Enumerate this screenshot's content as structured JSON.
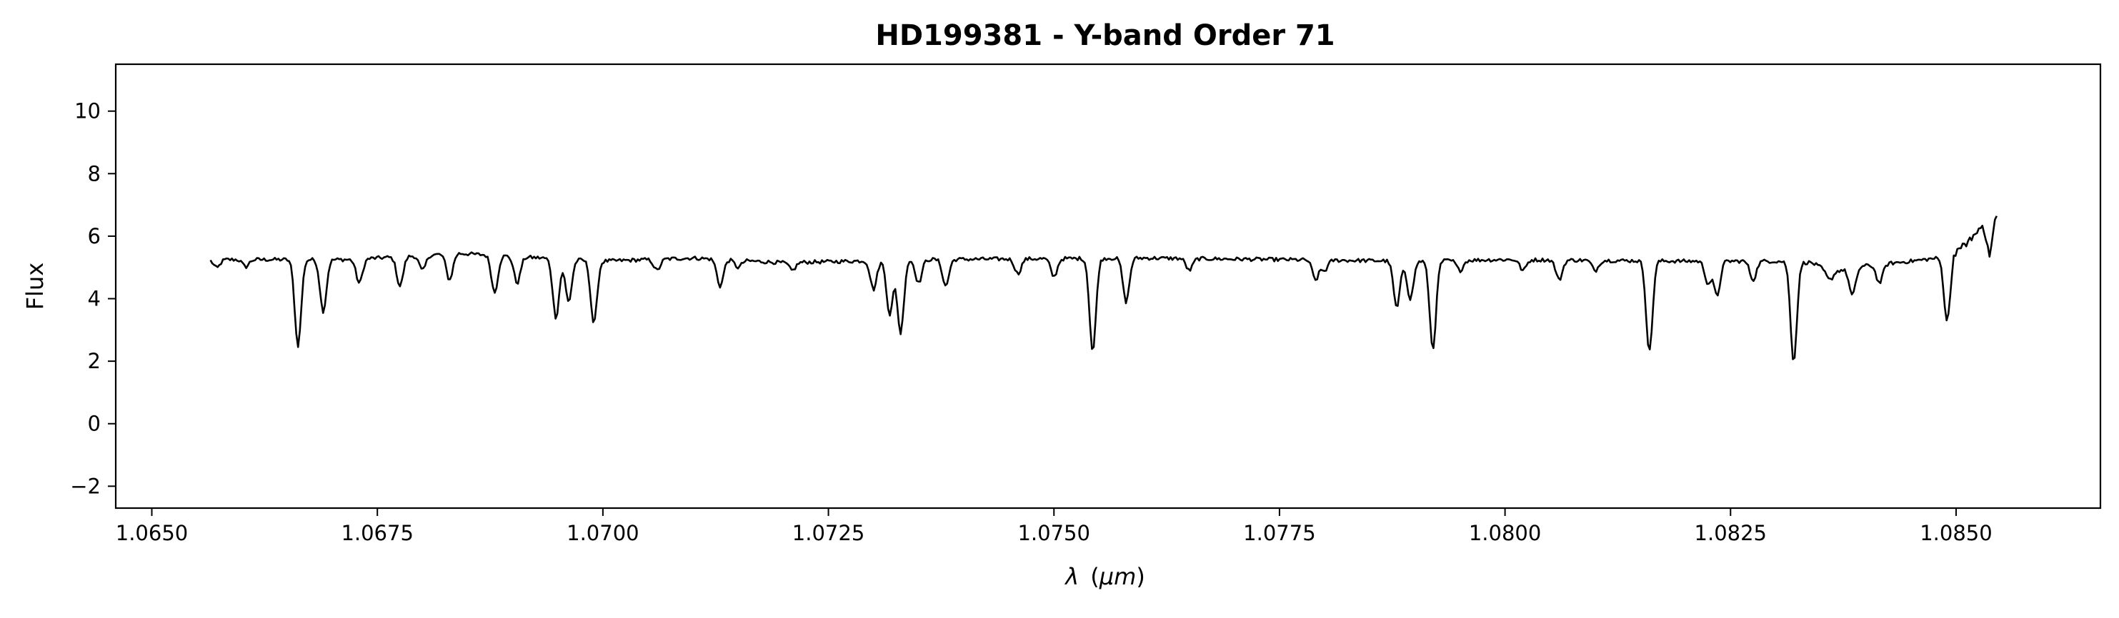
{
  "chart_data": {
    "type": "line",
    "title": "HD199381 - Y-band Order 71",
    "xlabel_symbol": "λ",
    "xlabel_unit": "μm",
    "ylabel": "Flux",
    "xlim": [
      1.0646,
      1.0866
    ],
    "ylim": [
      -2.7,
      11.5
    ],
    "x_ticks": [
      1.065,
      1.0675,
      1.07,
      1.0725,
      1.075,
      1.0775,
      1.08,
      1.0825,
      1.085
    ],
    "x_tick_labels": [
      "1.0650",
      "1.0675",
      "1.0700",
      "1.0725",
      "1.0750",
      "1.0775",
      "1.0800",
      "1.0825",
      "1.0850"
    ],
    "y_ticks": [
      -2,
      0,
      2,
      4,
      6,
      8,
      10
    ],
    "y_tick_labels": [
      "−2",
      "0",
      "2",
      "4",
      "6",
      "8",
      "10"
    ],
    "grid": false,
    "line_color": "#000000",
    "series": [
      {
        "x_start": 1.06565,
        "x_end": 1.08545,
        "samples": 1000,
        "continuum": [
          [
            1.06565,
            5.25
          ],
          [
            1.0672,
            5.25
          ],
          [
            1.0678,
            5.35
          ],
          [
            1.0684,
            5.45
          ],
          [
            1.069,
            5.35
          ],
          [
            1.07,
            5.2
          ],
          [
            1.071,
            5.3
          ],
          [
            1.072,
            5.15
          ],
          [
            1.0735,
            5.25
          ],
          [
            1.076,
            5.3
          ],
          [
            1.079,
            5.2
          ],
          [
            1.08,
            5.25
          ],
          [
            1.082,
            5.2
          ],
          [
            1.083,
            5.2
          ],
          [
            1.0834,
            5.15
          ],
          [
            1.0836,
            4.85
          ],
          [
            1.084,
            5.05
          ],
          [
            1.0845,
            5.2
          ],
          [
            1.0848,
            5.3
          ],
          [
            1.085,
            5.5
          ],
          [
            1.0852,
            6.0
          ],
          [
            1.0854,
            6.7
          ],
          [
            1.08545,
            6.7
          ]
        ],
        "absorption_lines": [
          [
            1.06572,
            4.98
          ],
          [
            1.06604,
            5.02
          ],
          [
            1.06662,
            2.5
          ],
          [
            1.0669,
            3.6
          ],
          [
            1.0673,
            4.5
          ],
          [
            1.06775,
            4.4
          ],
          [
            1.068,
            4.9
          ],
          [
            1.0683,
            4.6
          ],
          [
            1.0688,
            4.2
          ],
          [
            1.06905,
            4.5
          ],
          [
            1.06948,
            3.4
          ],
          [
            1.06962,
            3.9
          ],
          [
            1.0699,
            3.2
          ],
          [
            1.0706,
            4.9
          ],
          [
            1.0713,
            4.4
          ],
          [
            1.0715,
            5.0
          ],
          [
            1.0721,
            4.9
          ],
          [
            1.073,
            4.3
          ],
          [
            1.07318,
            3.5
          ],
          [
            1.0733,
            2.9
          ],
          [
            1.0735,
            4.5
          ],
          [
            1.0738,
            4.4
          ],
          [
            1.0746,
            4.8
          ],
          [
            1.075,
            4.7
          ],
          [
            1.07543,
            2.3
          ],
          [
            1.0758,
            3.9
          ],
          [
            1.0765,
            4.9
          ],
          [
            1.0779,
            4.6
          ],
          [
            1.078,
            4.9
          ],
          [
            1.0788,
            3.7
          ],
          [
            1.07895,
            4.0
          ],
          [
            1.0792,
            2.4
          ],
          [
            1.0795,
            4.9
          ],
          [
            1.0802,
            4.9
          ],
          [
            1.0806,
            4.6
          ],
          [
            1.081,
            4.9
          ],
          [
            1.0816,
            2.3
          ],
          [
            1.08225,
            4.5
          ],
          [
            1.08235,
            4.1
          ],
          [
            1.08275,
            4.6
          ],
          [
            1.0832,
            2.0
          ],
          [
            1.0836,
            4.6
          ],
          [
            1.08385,
            4.1
          ],
          [
            1.08415,
            4.5
          ],
          [
            1.0849,
            3.3
          ],
          [
            1.08537,
            5.5
          ]
        ]
      }
    ]
  }
}
